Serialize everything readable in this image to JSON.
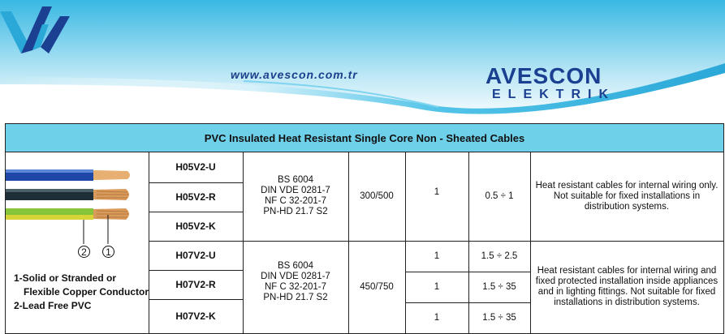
{
  "header": {
    "url": "www.avescon.com.tr",
    "brand_name": "AVESCON",
    "brand_sub": "ELEKTRIK"
  },
  "table": {
    "title": "PVC Insulated Heat Resistant Single Core Non - Sheated Cables",
    "legend": {
      "marker_1": "1",
      "marker_2": "2",
      "line1": "1-Solid or Stranded  or",
      "line2": "Flexible Copper Conductor",
      "line3": "2-Lead Free PVC"
    },
    "group1": {
      "codes": [
        "H05V2-U",
        "H05V2-R",
        "H05V2-K"
      ],
      "standards": [
        "BS 6004",
        "DIN VDE 0281-7",
        "NF C 32-201-7",
        "PN-HD 21.7 S2"
      ],
      "voltage": "300/500",
      "cores": "1",
      "section": "0.5 ÷ 1",
      "description": "Heat resistant cables for internal wiring only. Not suitable for fixed installations in distribution systems."
    },
    "group2": {
      "codes": [
        "H07V2-U",
        "H07V2-R",
        "H07V2-K"
      ],
      "standards": [
        "BS 6004",
        "DIN VDE  0281-7",
        "NF C 32-201-7",
        "PN-HD 21.7 S2"
      ],
      "voltage": "450/750",
      "cores": [
        "1",
        "1",
        "1"
      ],
      "sections": [
        "1.5 ÷ 2.5",
        "1.5 ÷ 35",
        "1.5 ÷ 35"
      ],
      "description": "Heat resistant cables for internal wiring and fixed protected installation inside appliances and in lighting fittings. Not suitable for fixed installations in distribution systems."
    }
  },
  "colors": {
    "header_blue": "#1b3f91",
    "title_band": "#6fd0ea",
    "wave_cyan": "#4cc3e6"
  }
}
